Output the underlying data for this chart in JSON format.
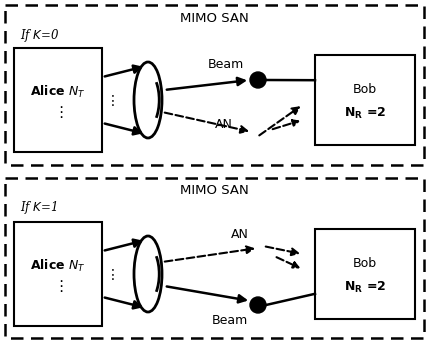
{
  "fig_width": 4.29,
  "fig_height": 3.44,
  "dpi": 100,
  "bg_color": "#ffffff",
  "panel1": {
    "title": "MIMO SAN",
    "label": "If $\\mathit{K}$=0",
    "alice_text": "Alice $\\mathbf{N_T}$",
    "bob_line1": "Bob",
    "bob_line2": "$\\mathbf{N_R}$ =2",
    "beam_label": "Beam",
    "an_label": "AN"
  },
  "panel2": {
    "title": "MIMO SAN",
    "label": "If $\\mathit{K}$=1",
    "alice_text": "Alice $\\mathbf{N_T}$",
    "bob_line1": "Bob",
    "bob_line2": "$\\mathbf{N_R}$ =2",
    "beam_label": "Beam",
    "an_label": "AN"
  }
}
